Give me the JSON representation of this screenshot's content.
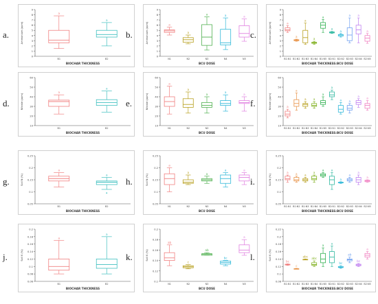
{
  "panel_letters": [
    "a.",
    "b.",
    "c.",
    "d.",
    "e.",
    "f.",
    "g.",
    "h.",
    "i.",
    "j.",
    "k.",
    "l."
  ],
  "chart_data": [
    {
      "id": "a",
      "type": "box",
      "xlabel": "BIOCHAR THICKNESS",
      "ylabel": "Ammonium (ppm)",
      "ylim": [
        0,
        9
      ],
      "yticks": [
        0,
        1,
        2,
        3,
        4,
        5,
        6,
        7,
        8,
        9
      ],
      "categories": [
        "B1",
        "B2"
      ],
      "boxes": [
        [
          1.5,
          2.6,
          3.1,
          5,
          7.8
        ],
        [
          2,
          3.7,
          4.2,
          5,
          6.5
        ]
      ],
      "letters": [
        "a",
        "a"
      ],
      "colors": [
        "#f08080",
        "#3fbfbf"
      ]
    },
    {
      "id": "b",
      "type": "box",
      "xlabel": "BCU DOSE",
      "ylabel": "Ammonium (ppm)",
      "ylim": [
        0,
        9
      ],
      "yticks": [
        0,
        1,
        2,
        3,
        4,
        5,
        6,
        7,
        8,
        9
      ],
      "categories": [
        "N1",
        "N2",
        "N3",
        "N4",
        "N5"
      ],
      "boxes": [
        [
          4.1,
          4.6,
          4.9,
          5.1,
          5.6
        ],
        [
          2.4,
          2.7,
          3.2,
          3.6,
          4.1
        ],
        [
          1.2,
          2.1,
          3.7,
          6.1,
          7.6
        ],
        [
          1.3,
          2.2,
          2.6,
          5.2,
          7.4
        ],
        [
          2.9,
          3.7,
          4.4,
          5.9,
          7.2
        ]
      ],
      "letters": [
        "a",
        "a",
        "a",
        "a",
        "a"
      ],
      "colors": [
        "#f08080",
        "#b8a020",
        "#50b050",
        "#30b8d8",
        "#e080e0"
      ]
    },
    {
      "id": "c",
      "type": "box",
      "xlabel": "BIOCHAR THICKNESS:BCU DOSE",
      "ylabel": "Ammonium (ppm)",
      "ylim": [
        0,
        9
      ],
      "yticks": [
        0,
        1,
        2,
        3,
        4,
        5,
        6,
        7,
        8,
        9
      ],
      "categories": [
        "B1:N1",
        "B1:N2",
        "B1:N3",
        "B1:N4",
        "B1:N5",
        "B2:N1",
        "B2:N2",
        "B2:N3",
        "B2:N4",
        "B2:N5"
      ],
      "boxes": [
        [
          4.6,
          4.9,
          5.1,
          5.5,
          5.9
        ],
        [
          2.9,
          3,
          3.1,
          3.2,
          3.3
        ],
        [
          2.3,
          2.6,
          3.6,
          5,
          6.4
        ],
        [
          2.3,
          2.5,
          2.6,
          2.7,
          2.9
        ],
        [
          4.6,
          5.4,
          6,
          6.5,
          7.1
        ],
        [
          4.4,
          4.5,
          4.6,
          4.7,
          4.8
        ],
        [
          3.7,
          3.9,
          4.1,
          4.2,
          4.4
        ],
        [
          2.6,
          3,
          4.1,
          5.5,
          7.4
        ],
        [
          2.6,
          4.3,
          5.1,
          6,
          7.4
        ],
        [
          2.5,
          2.9,
          3.5,
          4,
          4.4
        ]
      ],
      "letters": [
        "a",
        "a",
        "a",
        "a",
        "a",
        "a",
        "a",
        "a",
        "a",
        "a"
      ],
      "colors": [
        "#f08080",
        "#e8944a",
        "#b8a020",
        "#80b020",
        "#30b050",
        "#30b8a0",
        "#30b8d8",
        "#70a0f0",
        "#c080f0",
        "#f080c0"
      ]
    },
    {
      "id": "d",
      "type": "box",
      "xlabel": "BIOCHAR THICKNESS",
      "ylabel": "Nitrate (ppm)",
      "ylim": [
        10,
        60
      ],
      "yticks": [
        10,
        20,
        30,
        40,
        50,
        60
      ],
      "categories": [
        "B1",
        "B2"
      ],
      "boxes": [
        [
          22,
          30,
          35,
          36.5,
          42
        ],
        [
          24,
          31,
          34,
          37,
          46
        ]
      ],
      "letters": [
        "a",
        "a"
      ],
      "colors": [
        "#f08080",
        "#3fbfbf"
      ]
    },
    {
      "id": "e",
      "type": "box",
      "xlabel": "BCU DOSE",
      "ylabel": "Nitrate (ppm)",
      "ylim": [
        10,
        60
      ],
      "yticks": [
        10,
        20,
        30,
        40,
        50,
        60
      ],
      "categories": [
        "N1",
        "N2",
        "N3",
        "N4",
        "N5"
      ],
      "boxes": [
        [
          22,
          30,
          35,
          40,
          51
        ],
        [
          23,
          29,
          32,
          38,
          45
        ],
        [
          23,
          29,
          31,
          34,
          40
        ],
        [
          25,
          31,
          33,
          36,
          42
        ],
        [
          25,
          33,
          34,
          36,
          40
        ]
      ],
      "letters": [
        "a",
        "a",
        "a",
        "a",
        "a"
      ],
      "colors": [
        "#f08080",
        "#b8a020",
        "#50b050",
        "#30b8d8",
        "#e080e0"
      ]
    },
    {
      "id": "f",
      "type": "box",
      "xlabel": "BIOCHAR THICKNESS:BCU DOSE",
      "ylabel": "Nitrate (ppm)",
      "ylim": [
        10,
        60
      ],
      "yticks": [
        10,
        20,
        30,
        40,
        50,
        60
      ],
      "categories": [
        "B1:N1",
        "B1:N2",
        "B1:N3",
        "B1:N4",
        "B1:N5",
        "B2:N1",
        "B2:N2",
        "B2:N3",
        "B2:N4",
        "B2:N5"
      ],
      "boxes": [
        [
          18,
          20,
          22,
          25,
          27
        ],
        [
          26,
          30,
          33,
          37,
          44
        ],
        [
          28,
          30,
          32,
          33,
          35
        ],
        [
          28,
          30,
          31,
          33,
          35
        ],
        [
          30,
          32,
          34,
          36,
          40
        ],
        [
          37,
          40,
          42,
          45,
          47
        ],
        [
          22,
          24,
          27,
          31,
          34
        ],
        [
          23,
          26,
          28,
          31,
          33
        ],
        [
          29,
          32,
          34,
          36,
          38
        ],
        [
          26,
          28,
          31,
          33,
          36
        ]
      ],
      "letters": [
        "a",
        "a",
        "a",
        "a",
        "a",
        "a",
        "a",
        "a",
        "a",
        "a"
      ],
      "colors": [
        "#f08080",
        "#e8944a",
        "#b8a020",
        "#80b020",
        "#30b050",
        "#30b8a0",
        "#30b8d8",
        "#70a0f0",
        "#c080f0",
        "#f080c0"
      ]
    },
    {
      "id": "g",
      "type": "box",
      "xlabel": "BIOCHAR THICKNESS",
      "ylabel": "Soil N (%)",
      "ylim": [
        0.05,
        0.25
      ],
      "yticks": [
        0.05,
        0.1,
        0.15,
        0.2,
        0.25
      ],
      "categories": [
        "B1",
        "B2"
      ],
      "boxes": [
        [
          0.12,
          0.145,
          0.155,
          0.165,
          0.18
        ],
        [
          0.11,
          0.13,
          0.14,
          0.145,
          0.16
        ]
      ],
      "outliers": [
        [],
        [
          0.095
        ]
      ],
      "letters": [
        "a",
        "a"
      ],
      "colors": [
        "#f08080",
        "#3fbfbf"
      ]
    },
    {
      "id": "h",
      "type": "box",
      "xlabel": "BCU DOSE",
      "ylabel": "Soil N (%)",
      "ylim": [
        0.05,
        0.25
      ],
      "yticks": [
        0.05,
        0.1,
        0.15,
        0.2,
        0.25
      ],
      "categories": [
        "N1",
        "N2",
        "N3",
        "N4",
        "N5"
      ],
      "boxes": [
        [
          0.1,
          0.13,
          0.155,
          0.175,
          0.2
        ],
        [
          0.13,
          0.135,
          0.14,
          0.15,
          0.17
        ],
        [
          0.135,
          0.145,
          0.15,
          0.155,
          0.165
        ],
        [
          0.12,
          0.135,
          0.155,
          0.17,
          0.18
        ],
        [
          0.13,
          0.145,
          0.16,
          0.17,
          0.18
        ]
      ],
      "letters": [
        "a",
        "a",
        "a",
        "a",
        "a"
      ],
      "colors": [
        "#f08080",
        "#b8a020",
        "#50b050",
        "#30b8d8",
        "#e080e0"
      ]
    },
    {
      "id": "i",
      "type": "box",
      "xlabel": "BIOCHAR THICKNESS:BCU DOSE",
      "ylabel": "Soil N (%)",
      "ylim": [
        0.05,
        0.25
      ],
      "yticks": [
        0.05,
        0.1,
        0.15,
        0.2,
        0.25
      ],
      "categories": [
        "B1:N1",
        "B1:N2",
        "B1:N3",
        "B1:N4",
        "B1:N5",
        "B2:N1",
        "B2:N2",
        "B2:N3",
        "B2:N4",
        "B2:N5"
      ],
      "boxes": [
        [
          0.14,
          0.15,
          0.155,
          0.165,
          0.17
        ],
        [
          0.14,
          0.145,
          0.15,
          0.16,
          0.165
        ],
        [
          0.14,
          0.145,
          0.15,
          0.155,
          0.16
        ],
        [
          0.14,
          0.15,
          0.155,
          0.165,
          0.17
        ],
        [
          0.16,
          0.165,
          0.17,
          0.175,
          0.18
        ],
        [
          0.11,
          0.13,
          0.15,
          0.165,
          0.18
        ],
        [
          0.135,
          0.137,
          0.138,
          0.14,
          0.142
        ],
        [
          0.14,
          0.145,
          0.15,
          0.155,
          0.16
        ],
        [
          0.13,
          0.14,
          0.15,
          0.16,
          0.17
        ],
        [
          0.14,
          0.142,
          0.145,
          0.148,
          0.15
        ]
      ],
      "letters": [
        "a",
        "a",
        "a",
        "a",
        "a",
        "a",
        "a",
        "a",
        "a",
        "a"
      ],
      "colors": [
        "#f08080",
        "#e8944a",
        "#b8a020",
        "#80b020",
        "#30b050",
        "#30b8a0",
        "#30b8d8",
        "#70a0f0",
        "#c080f0",
        "#f080c0"
      ]
    },
    {
      "id": "j",
      "type": "box",
      "xlabel": "BIOCHAR THICKNESS",
      "ylabel": "Soil K (%)",
      "ylim": [
        0.06,
        0.2
      ],
      "yticks": [
        0.06,
        0.08,
        0.1,
        0.12,
        0.14,
        0.16,
        0.18,
        0.2
      ],
      "categories": [
        "B1",
        "B2"
      ],
      "boxes": [
        [
          0.08,
          0.09,
          0.1,
          0.12,
          0.17
        ],
        [
          0.08,
          0.095,
          0.105,
          0.12,
          0.18
        ]
      ],
      "letters": [
        "a",
        "a"
      ],
      "colors": [
        "#f08080",
        "#3fbfbf"
      ]
    },
    {
      "id": "k",
      "type": "box",
      "xlabel": "BCU DOSE",
      "ylabel": "Soil K (%)",
      "ylim": [
        0.1,
        0.2
      ],
      "yticks": [
        0.1,
        0.12,
        0.14,
        0.16,
        0.18,
        0.2
      ],
      "categories": [
        "N1",
        "N2",
        "N3",
        "N4",
        "N5"
      ],
      "boxes": [
        [
          0.13,
          0.14,
          0.145,
          0.155,
          0.17
        ],
        [
          0.124,
          0.126,
          0.128,
          0.13,
          0.132
        ],
        [
          0.15,
          0.15,
          0.152,
          0.153,
          0.155
        ],
        [
          0.13,
          0.133,
          0.136,
          0.139,
          0.14
        ],
        [
          0.15,
          0.155,
          0.16,
          0.17,
          0.18
        ]
      ],
      "letters": [
        "ab",
        "c",
        "ab",
        "bc",
        "a"
      ],
      "colors": [
        "#f08080",
        "#b8a020",
        "#50b050",
        "#30b8d8",
        "#e080e0"
      ]
    },
    {
      "id": "l",
      "type": "box",
      "xlabel": "BIOCHAR THICKNESS:BCU DOSE",
      "ylabel": "Soil K (%)",
      "ylim": [
        0.08,
        0.22
      ],
      "yticks": [
        0.08,
        0.1,
        0.12,
        0.14,
        0.16,
        0.18,
        0.2,
        0.22
      ],
      "categories": [
        "B1:N1",
        "B1:N2",
        "B1:N3",
        "B1:N4",
        "B1:N5",
        "B2:N1",
        "B2:N2",
        "B2:N3",
        "B2:N4",
        "B2:N5"
      ],
      "boxes": [
        [
          0.123,
          0.124,
          0.125,
          0.126,
          0.127
        ],
        [
          0.113,
          0.113,
          0.114,
          0.114,
          0.115
        ],
        [
          0.138,
          0.138,
          0.139,
          0.139,
          0.14
        ],
        [
          0.12,
          0.123,
          0.125,
          0.13,
          0.135
        ],
        [
          0.12,
          0.13,
          0.14,
          0.155,
          0.17
        ],
        [
          0.12,
          0.13,
          0.145,
          0.16,
          0.175
        ],
        [
          0.115,
          0.117,
          0.118,
          0.12,
          0.122
        ],
        [
          0.13,
          0.135,
          0.138,
          0.14,
          0.145
        ],
        [
          0.12,
          0.122,
          0.124,
          0.126,
          0.128
        ],
        [
          0.14,
          0.145,
          0.15,
          0.155,
          0.16
        ]
      ],
      "letters": [
        "bc",
        "c",
        "abc",
        "abc",
        "a",
        "a",
        "bc",
        "ab",
        "bc",
        "a"
      ],
      "colors": [
        "#f08080",
        "#e8944a",
        "#b8a020",
        "#80b020",
        "#30b050",
        "#30b8a0",
        "#30b8d8",
        "#70a0f0",
        "#c080f0",
        "#f080c0"
      ]
    }
  ]
}
